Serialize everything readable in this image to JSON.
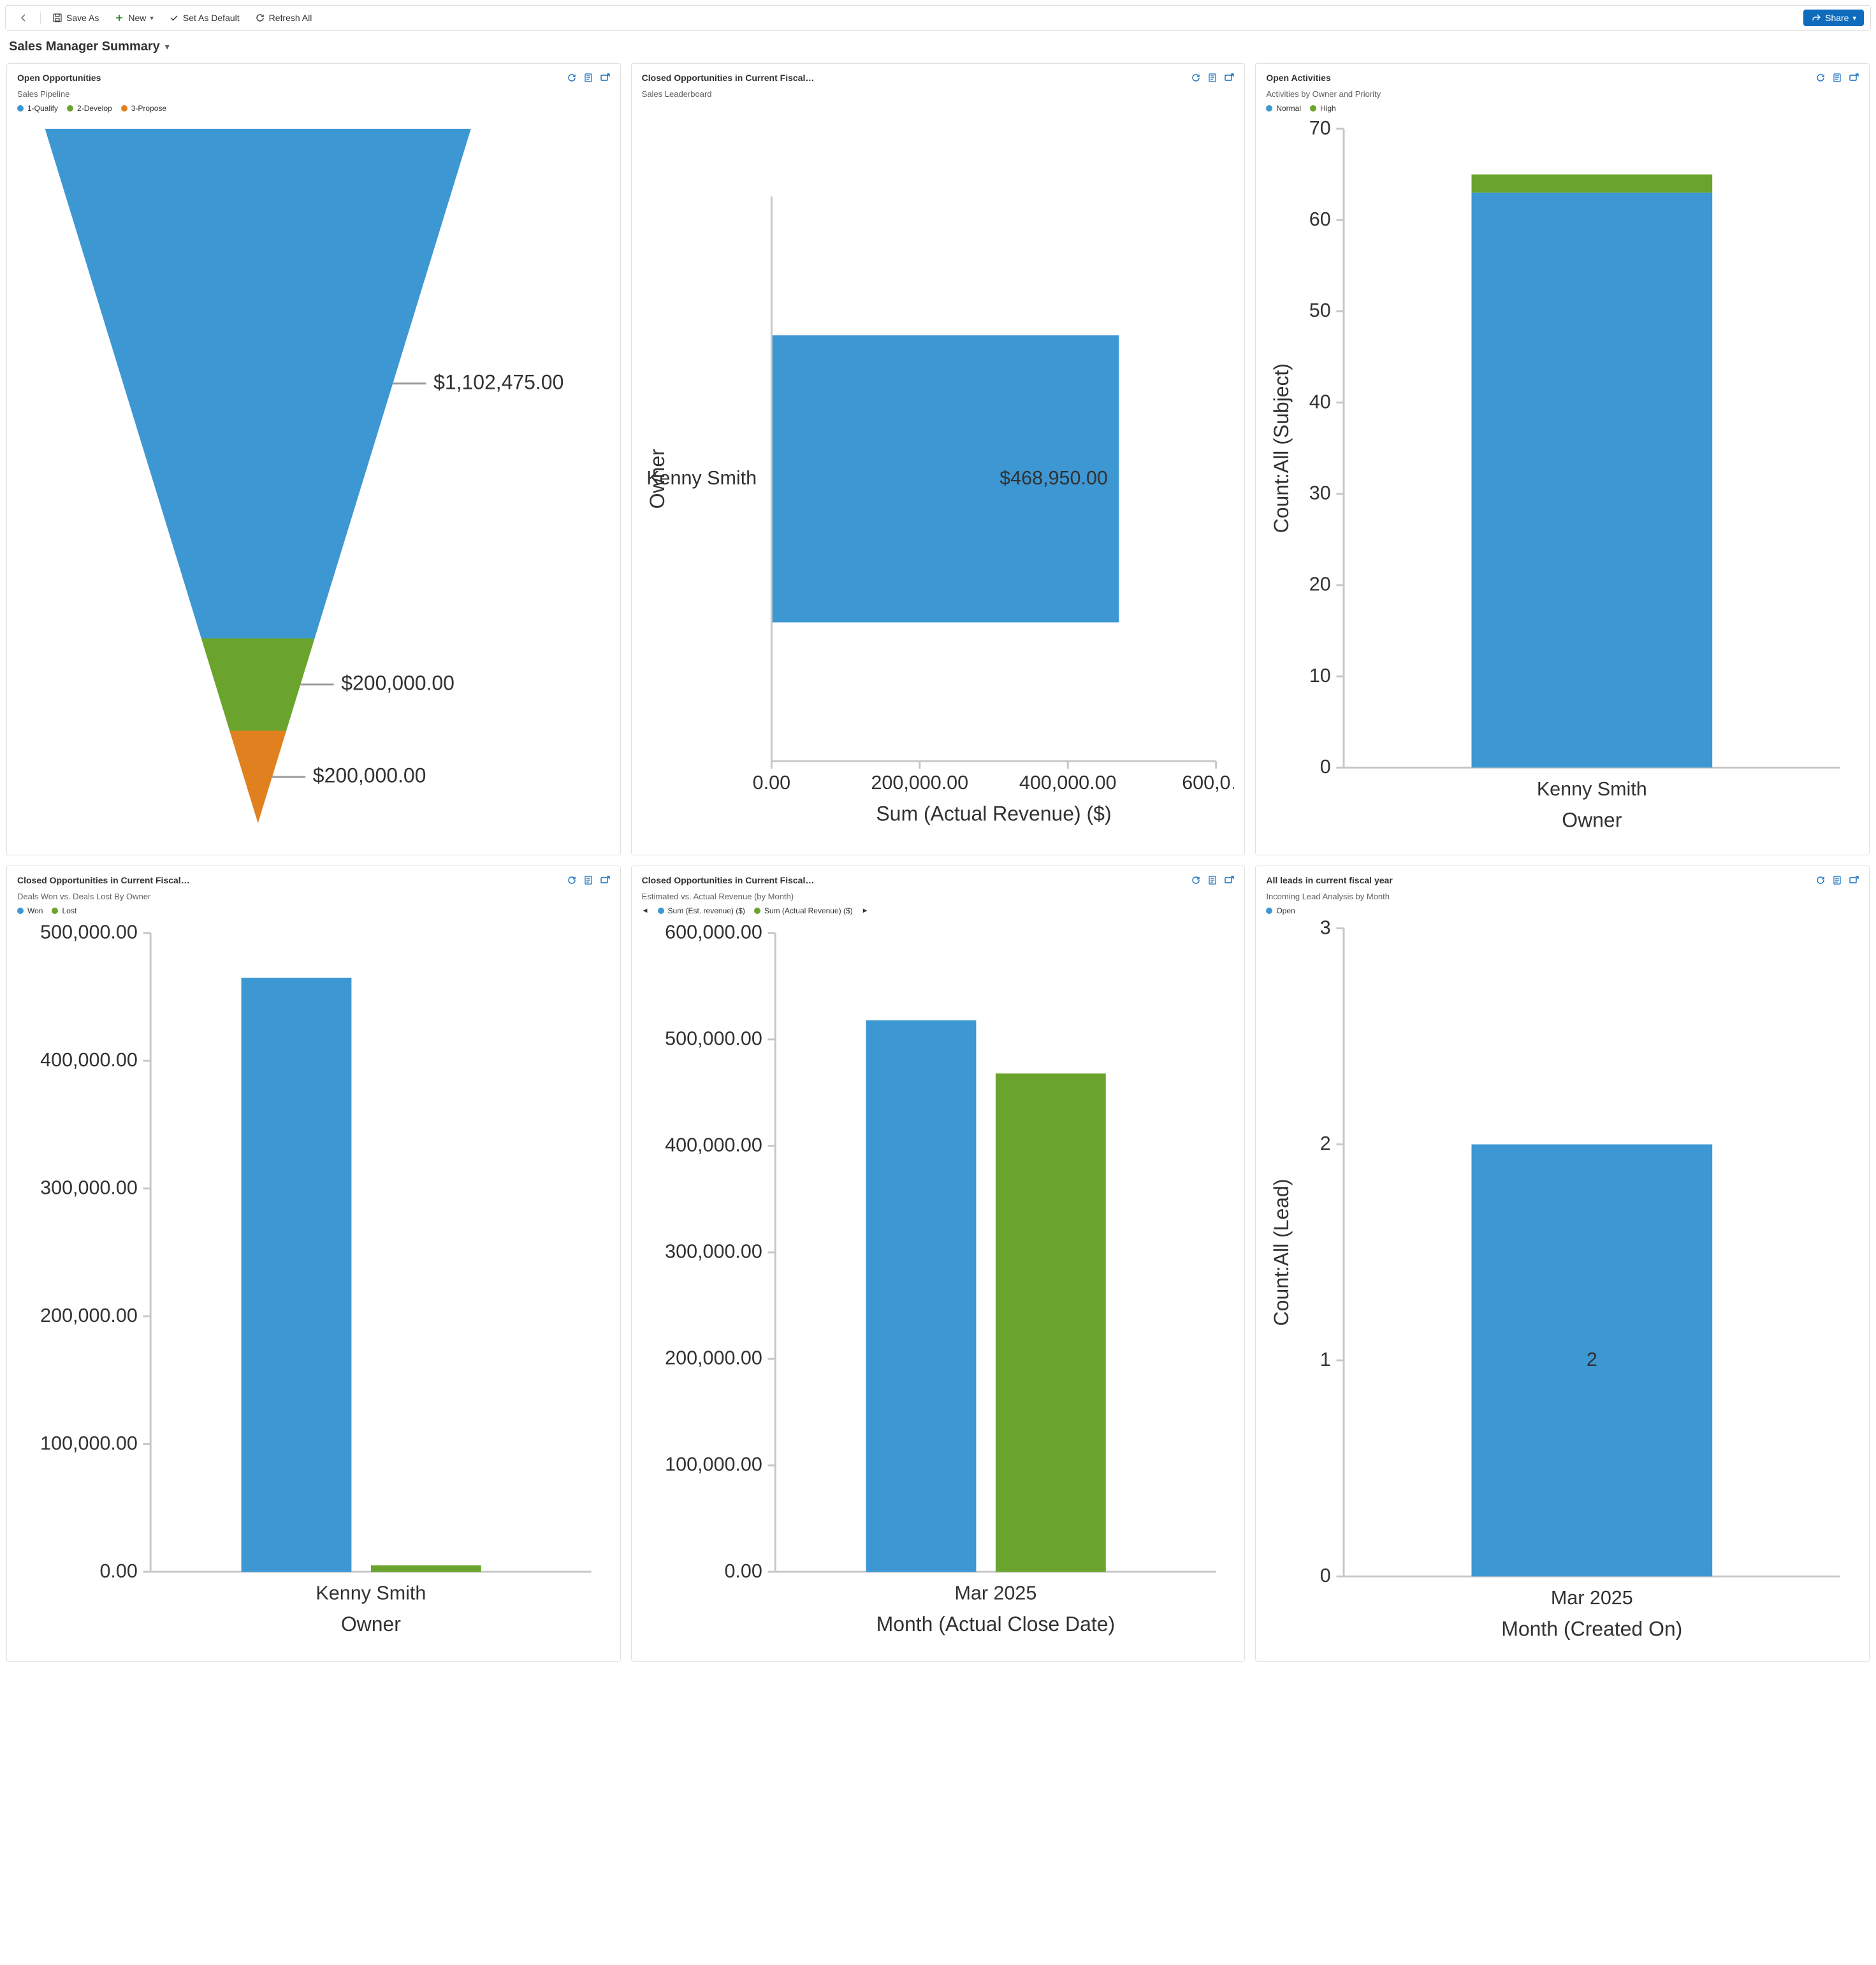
{
  "toolbar": {
    "back_label": "Back",
    "save_as_label": "Save As",
    "new_label": "New",
    "set_default_label": "Set As Default",
    "refresh_label": "Refresh All",
    "share_label": "Share"
  },
  "page_title": "Sales Manager Summary",
  "colors": {
    "blue": "#3d97d3",
    "green": "#6ba42c",
    "orange": "#e0801e",
    "accent": "#0f6cbd",
    "grid": "#e1dfdd",
    "axis": "#c8c6c4",
    "text": "#323130",
    "subtext": "#605e5c"
  },
  "cards": {
    "open_opps": {
      "title": "Open Opportunities",
      "subtitle": "Sales Pipeline",
      "legend": [
        {
          "label": "1-Qualify",
          "color": "#3d97d3"
        },
        {
          "label": "2-Develop",
          "color": "#6ba42c"
        },
        {
          "label": "3-Propose",
          "color": "#e0801e"
        }
      ],
      "funnel": {
        "type": "funnel",
        "segments": [
          {
            "label": "$1,102,475.00",
            "value": 1102475,
            "color": "#3d97d3"
          },
          {
            "label": "$200,000.00",
            "value": 200000,
            "color": "#6ba42c"
          },
          {
            "label": "$200,000.00",
            "value": 200000,
            "color": "#e0801e"
          }
        ]
      }
    },
    "closed_fiscal_1": {
      "title": "Closed Opportunities in Current Fiscal…",
      "subtitle": "Sales Leaderboard",
      "chart": {
        "type": "bar-horizontal",
        "x_label": "Sum (Actual Revenue) ($)",
        "y_label": "Owner",
        "x_ticks": [
          "0.00",
          "200,000.00",
          "400,000.00",
          "600,0…"
        ],
        "x_tick_values": [
          0,
          200000,
          400000,
          600000
        ],
        "x_max": 600000,
        "bars": [
          {
            "category": "Kenny Smith",
            "value": 468950,
            "label": "$468,950.00",
            "color": "#3d97d3"
          }
        ]
      }
    },
    "open_activities": {
      "title": "Open Activities",
      "subtitle": "Activities by Owner and Priority",
      "legend": [
        {
          "label": "Normal",
          "color": "#3d97d3"
        },
        {
          "label": "High",
          "color": "#6ba42c"
        }
      ],
      "chart": {
        "type": "stacked-bar",
        "y_label": "Count:All (Subject)",
        "x_label_bottom": "Owner",
        "y_max": 70,
        "y_ticks": [
          0,
          10,
          20,
          30,
          40,
          50,
          60,
          70
        ],
        "categories": [
          "Kenny Smith"
        ],
        "stacks": [
          {
            "category": "Kenny Smith",
            "segments": [
              {
                "series": "Normal",
                "value": 63,
                "color": "#3d97d3"
              },
              {
                "series": "High",
                "value": 2,
                "color": "#6ba42c"
              }
            ]
          }
        ]
      }
    },
    "closed_fiscal_2": {
      "title": "Closed Opportunities in Current Fiscal…",
      "subtitle": "Deals Won vs. Deals Lost By Owner",
      "legend": [
        {
          "label": "Won",
          "color": "#3d97d3"
        },
        {
          "label": "Lost",
          "color": "#6ba42c"
        }
      ],
      "chart": {
        "type": "grouped-bar",
        "y_ticks_labels": [
          "0.00",
          "100,000.00",
          "200,000.00",
          "300,000.00",
          "400,000.00",
          "500,000.00"
        ],
        "y_ticks": [
          0,
          100000,
          200000,
          300000,
          400000,
          500000
        ],
        "y_max": 500000,
        "x_label_bottom": "Owner",
        "categories": [
          "Kenny Smith"
        ],
        "groups": [
          {
            "category": "Kenny Smith",
            "bars": [
              {
                "series": "Won",
                "value": 465000,
                "color": "#3d97d3"
              },
              {
                "series": "Lost",
                "value": 5000,
                "color": "#6ba42c"
              }
            ]
          }
        ]
      }
    },
    "closed_fiscal_3": {
      "title": "Closed Opportunities in Current Fiscal…",
      "subtitle": "Estimated vs. Actual Revenue (by Month)",
      "legend_nav": true,
      "legend": [
        {
          "label": "Sum (Est. revenue) ($)",
          "color": "#3d97d3"
        },
        {
          "label": "Sum (Actual Revenue) ($)",
          "color": "#6ba42c"
        }
      ],
      "chart": {
        "type": "grouped-bar",
        "y_ticks_labels": [
          "0.00",
          "100,000.00",
          "200,000.00",
          "300,000.00",
          "400,000.00",
          "500,000.00",
          "600,000.00"
        ],
        "y_ticks": [
          0,
          100000,
          200000,
          300000,
          400000,
          500000,
          600000
        ],
        "y_max": 600000,
        "x_label_bottom": "Month (Actual Close Date)",
        "categories": [
          "Mar 2025"
        ],
        "groups": [
          {
            "category": "Mar 2025",
            "bars": [
              {
                "series": "Sum (Est. revenue) ($)",
                "value": 518000,
                "color": "#3d97d3"
              },
              {
                "series": "Sum (Actual Revenue) ($)",
                "value": 468000,
                "color": "#6ba42c"
              }
            ]
          }
        ]
      }
    },
    "leads": {
      "title": "All leads in current fiscal year",
      "subtitle": "Incoming Lead Analysis by Month",
      "legend": [
        {
          "label": "Open",
          "color": "#3d97d3"
        }
      ],
      "chart": {
        "type": "bar",
        "y_label": "Count:All (Lead)",
        "x_label_bottom": "Month (Created On)",
        "y_max": 3,
        "y_ticks": [
          0,
          1,
          2,
          3
        ],
        "categories": [
          "Mar 2025"
        ],
        "bars": [
          {
            "category": "Mar 2025",
            "value": 2,
            "label": "2",
            "color": "#3d97d3"
          }
        ]
      }
    }
  }
}
